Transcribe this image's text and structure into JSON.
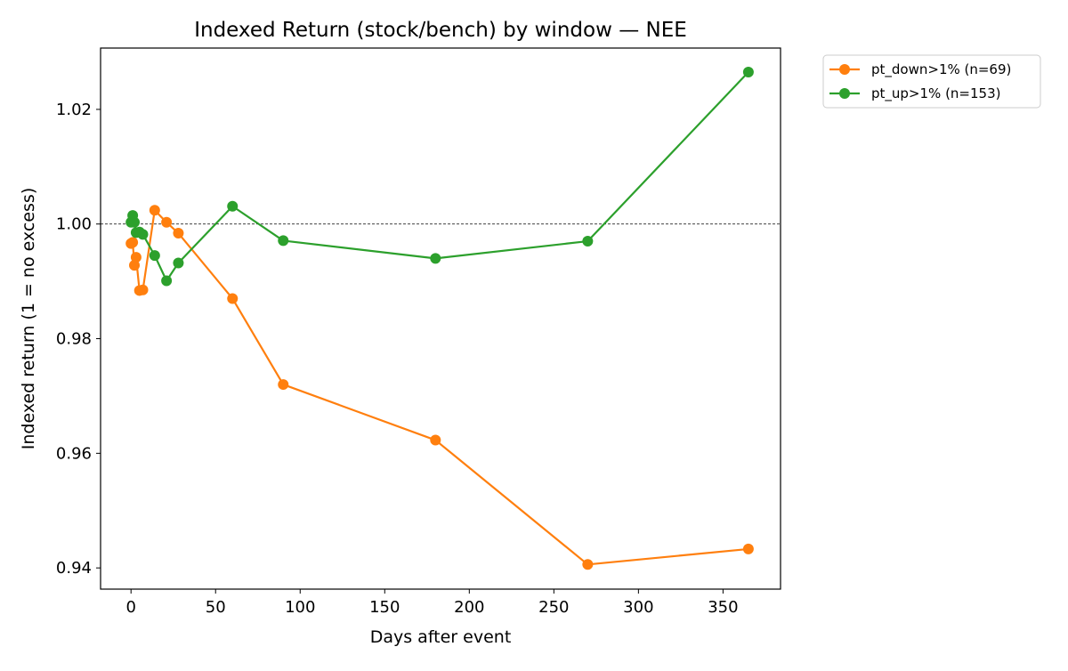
{
  "chart_data": {
    "type": "line",
    "title": "Indexed Return (stock/bench) by window — NEE",
    "xlabel": "Days after event",
    "ylabel": "Indexed return (1 = no excess)",
    "xlim": [
      -18,
      384
    ],
    "ylim": [
      0.9363,
      1.0307
    ],
    "xticks": [
      0,
      50,
      100,
      150,
      200,
      250,
      300,
      350
    ],
    "yticks": [
      0.94,
      0.96,
      0.98,
      1.0,
      1.02
    ],
    "ytick_labels": [
      "0.94",
      "0.96",
      "0.98",
      "1.00",
      "1.02"
    ],
    "reference_line": {
      "y": 1.0,
      "style": "dashed",
      "color": "#000000"
    },
    "grid": false,
    "legend_placement": "outside-top-right",
    "series": [
      {
        "name": "pt_down>1% (n=69)",
        "color": "#ff7f0e",
        "marker": "circle",
        "x": [
          0,
          1,
          2,
          3,
          5,
          7,
          14,
          21,
          28,
          60,
          90,
          180,
          270,
          365
        ],
        "y": [
          0.9966,
          0.9968,
          0.9928,
          0.9942,
          0.9884,
          0.9885,
          1.0024,
          1.0003,
          0.9984,
          0.987,
          0.972,
          0.9623,
          0.9406,
          0.9433
        ]
      },
      {
        "name": "pt_up>1% (n=153)",
        "color": "#2ca02c",
        "marker": "circle",
        "x": [
          0,
          1,
          2,
          3,
          5,
          7,
          14,
          21,
          28,
          60,
          90,
          180,
          270,
          365
        ],
        "y": [
          1.0003,
          1.0015,
          1.0003,
          0.9985,
          0.9986,
          0.9982,
          0.9945,
          0.9901,
          0.9932,
          1.0031,
          0.9971,
          0.994,
          0.997,
          1.0265
        ]
      }
    ]
  }
}
